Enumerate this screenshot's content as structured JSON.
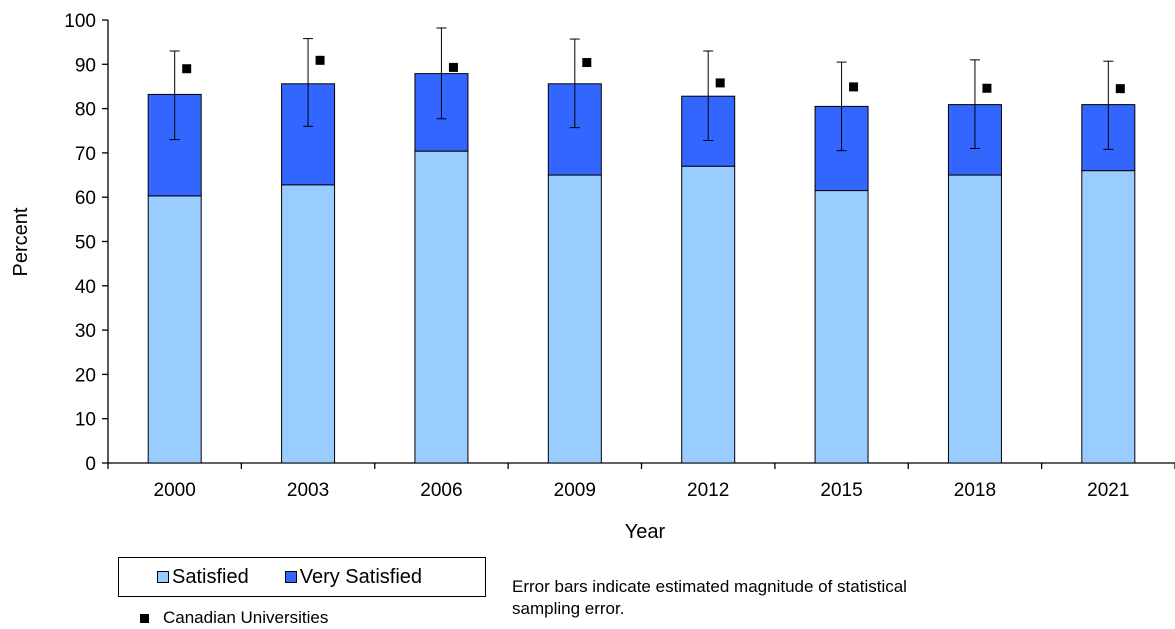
{
  "colors": {
    "satisfied": "#99ccff",
    "very_satisfied": "#3366ff",
    "marker": "#000000",
    "error_bar": "#000000"
  },
  "legend": {
    "satisfied_label": "Satisfied",
    "very_satisfied_label": "Very Satisfied",
    "marker_label": "Canadian Universities"
  },
  "note": "Error bars indicate estimated magnitude of statistical sampling error.",
  "chart_data": {
    "type": "bar",
    "stacked": true,
    "categories": [
      "2000",
      "2003",
      "2006",
      "2009",
      "2012",
      "2015",
      "2018",
      "2021"
    ],
    "series": [
      {
        "name": "Satisfied",
        "values": [
          60.3,
          62.8,
          70.4,
          65.0,
          67.0,
          61.5,
          65.0,
          66.0
        ]
      },
      {
        "name": "Very Satisfied",
        "values": [
          22.9,
          22.8,
          17.5,
          20.6,
          15.8,
          19.0,
          15.9,
          14.9
        ]
      }
    ],
    "error_bars": {
      "low": [
        73.0,
        76.0,
        77.7,
        75.7,
        72.8,
        70.5,
        71.0,
        70.8
      ],
      "high": [
        93.0,
        95.8,
        98.2,
        95.7,
        93.0,
        90.5,
        91.0,
        90.7
      ]
    },
    "markers": {
      "name": "Canadian Universities",
      "values": [
        89.0,
        90.9,
        89.3,
        90.4,
        85.8,
        84.9,
        84.6,
        84.5
      ]
    },
    "xlabel": "Year",
    "ylabel": "Percent",
    "ylim": [
      0,
      100
    ],
    "yticks": [
      0,
      10,
      20,
      30,
      40,
      50,
      60,
      70,
      80,
      90,
      100
    ],
    "grid": false,
    "legend_position": "bottom-left"
  }
}
